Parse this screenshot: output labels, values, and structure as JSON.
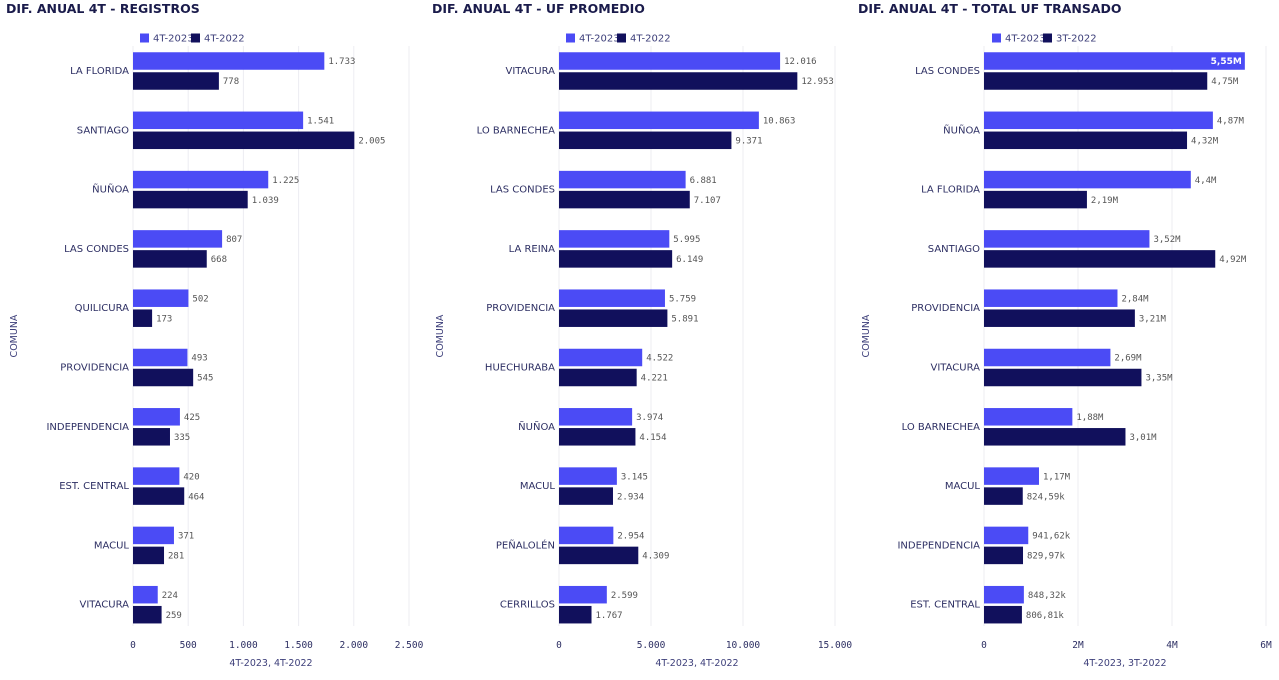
{
  "colors": {
    "series1": "#4b4bf5",
    "series2": "#11105c",
    "grid": "#ececf2"
  },
  "chart_data": [
    {
      "type": "bar",
      "orientation": "horizontal",
      "title": "DIF. ANUAL 4T - REGISTROS",
      "ylabel": "COMUNA",
      "xlabel": "4T-2023, 4T-2022",
      "xlim": [
        0,
        2500
      ],
      "xticks": [
        0,
        500,
        1000,
        1500,
        2000,
        2500
      ],
      "xtick_labels": [
        "0",
        "500",
        "1.000",
        "1.500",
        "2.000",
        "2.500"
      ],
      "categories": [
        "LA FLORIDA",
        "SANTIAGO",
        "ÑUÑOA",
        "LAS CONDES",
        "QUILICURA",
        "PROVIDENCIA",
        "INDEPENDENCIA",
        "EST. CENTRAL",
        "MACUL",
        "VITACURA"
      ],
      "series": [
        {
          "name": "4T-2023",
          "values": [
            1733,
            1541,
            1225,
            807,
            502,
            493,
            425,
            420,
            371,
            224
          ],
          "labels": [
            "1.733",
            "1.541",
            "1.225",
            "807",
            "502",
            "493",
            "425",
            "420",
            "371",
            "224"
          ]
        },
        {
          "name": "4T-2022",
          "values": [
            778,
            2005,
            1039,
            668,
            173,
            545,
            335,
            464,
            281,
            259
          ],
          "labels": [
            "778",
            "2.005",
            "1.039",
            "668",
            "173",
            "545",
            "335",
            "464",
            "281",
            "259"
          ]
        }
      ],
      "legend": "top-left"
    },
    {
      "type": "bar",
      "orientation": "horizontal",
      "title": "DIF. ANUAL 4T - UF PROMEDIO",
      "ylabel": "COMUNA",
      "xlabel": "4T-2023, 4T-2022",
      "xlim": [
        0,
        15000
      ],
      "xticks": [
        0,
        5000,
        10000,
        15000
      ],
      "xtick_labels": [
        "0",
        "5.000",
        "10.000",
        "15.000"
      ],
      "categories": [
        "VITACURA",
        "LO BARNECHEA",
        "LAS CONDES",
        "LA REINA",
        "PROVIDENCIA",
        "HUECHURABA",
        "ÑUÑOA",
        "MACUL",
        "PEÑALOLÉN",
        "CERRILLOS"
      ],
      "series": [
        {
          "name": "4T-2023",
          "values": [
            12016,
            10863,
            6881,
            5995,
            5759,
            4522,
            3974,
            3145,
            2954,
            2599
          ],
          "labels": [
            "12.016",
            "10.863",
            "6.881",
            "5.995",
            "5.759",
            "4.522",
            "3.974",
            "3.145",
            "2.954",
            "2.599"
          ]
        },
        {
          "name": "4T-2022",
          "values": [
            12953,
            9371,
            7107,
            6149,
            5891,
            4221,
            4154,
            2934,
            4309,
            1767
          ],
          "labels": [
            "12.953",
            "9.371",
            "7.107",
            "6.149",
            "5.891",
            "4.221",
            "4.154",
            "2.934",
            "4.309",
            "1.767"
          ]
        }
      ],
      "legend": "top-left"
    },
    {
      "type": "bar",
      "orientation": "horizontal",
      "title": "DIF. ANUAL 4T - TOTAL UF TRANSADO",
      "ylabel": "COMUNA",
      "xlabel": "4T-2023, 3T-2022",
      "xlim": [
        0,
        6000000
      ],
      "xticks": [
        0,
        2000000,
        4000000,
        6000000
      ],
      "xtick_labels": [
        "0",
        "2M",
        "4M",
        "6M"
      ],
      "categories": [
        "LAS CONDES",
        "ÑUÑOA",
        "LA FLORIDA",
        "SANTIAGO",
        "PROVIDENCIA",
        "VITACURA",
        "LO BARNECHEA",
        "MACUL",
        "INDEPENDENCIA",
        "EST. CENTRAL"
      ],
      "series": [
        {
          "name": "4T-2023",
          "values": [
            5550000,
            4870000,
            4400000,
            3520000,
            2840000,
            2690000,
            1880000,
            1170000,
            941620,
            848320
          ],
          "labels": [
            "5,55M",
            "4,87M",
            "4,4M",
            "3,52M",
            "2,84M",
            "2,69M",
            "1,88M",
            "1,17M",
            "941,62k",
            "848,32k"
          ]
        },
        {
          "name": "3T-2022",
          "values": [
            4750000,
            4320000,
            2190000,
            4920000,
            3210000,
            3350000,
            3010000,
            824590,
            829970,
            806810
          ],
          "labels": [
            "4,75M",
            "4,32M",
            "2,19M",
            "4,92M",
            "3,21M",
            "3,35M",
            "3,01M",
            "824,59k",
            "829,97k",
            "806,81k"
          ]
        }
      ],
      "legend": "top-left"
    }
  ]
}
